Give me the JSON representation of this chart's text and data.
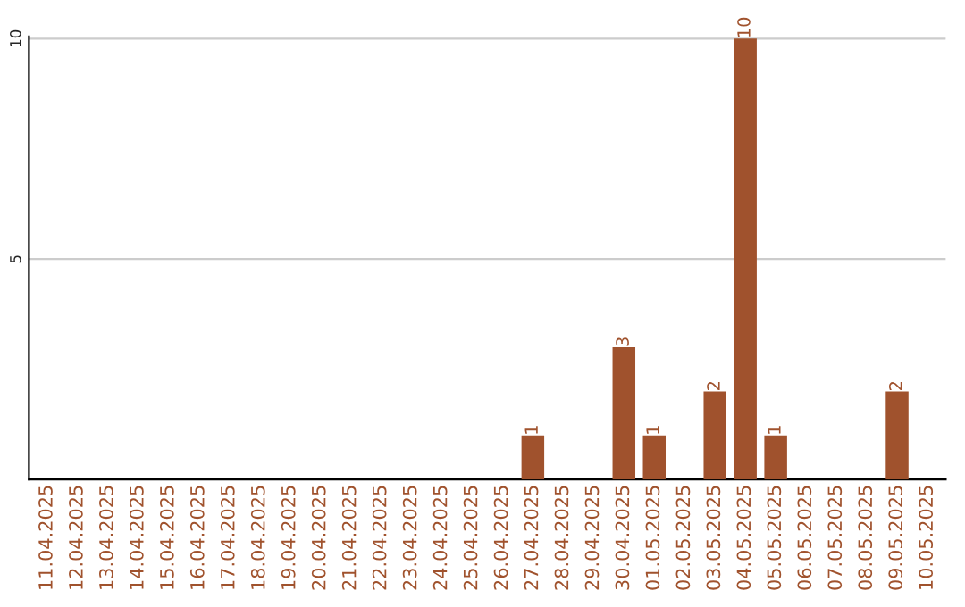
{
  "chart_data": {
    "type": "bar",
    "categories": [
      "11.04.2025",
      "12.04.2025",
      "13.04.2025",
      "14.04.2025",
      "15.04.2025",
      "16.04.2025",
      "17.04.2025",
      "18.04.2025",
      "19.04.2025",
      "20.04.2025",
      "21.04.2025",
      "22.04.2025",
      "23.04.2025",
      "24.04.2025",
      "25.04.2025",
      "26.04.2025",
      "27.04.2025",
      "28.04.2025",
      "29.04.2025",
      "30.04.2025",
      "01.05.2025",
      "02.05.2025",
      "03.05.2025",
      "04.05.2025",
      "05.05.2025",
      "06.05.2025",
      "07.05.2025",
      "08.05.2025",
      "09.05.2025",
      "10.05.2025"
    ],
    "values": [
      0,
      0,
      0,
      0,
      0,
      0,
      0,
      0,
      0,
      0,
      0,
      0,
      0,
      0,
      0,
      0,
      1,
      0,
      0,
      3,
      1,
      0,
      2,
      10,
      1,
      0,
      0,
      0,
      2,
      0
    ],
    "value_labels": [
      null,
      null,
      null,
      null,
      null,
      null,
      null,
      null,
      null,
      null,
      null,
      null,
      null,
      null,
      null,
      null,
      "1",
      null,
      null,
      "3",
      "1",
      null,
      "2",
      "10",
      "1",
      null,
      null,
      null,
      "2",
      null
    ],
    "color": "#a0522d",
    "ylim": [
      0,
      10.05
    ],
    "yticks": [
      5,
      10
    ],
    "grid": "y"
  }
}
